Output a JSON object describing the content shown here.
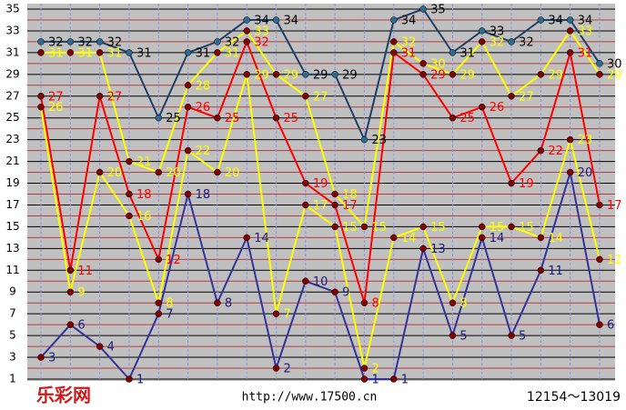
{
  "chart_data": {
    "type": "line",
    "logo": "乐彩网",
    "url": "http://www.17500.cn",
    "range_label": "12154～13019",
    "x": [
      1,
      2,
      3,
      4,
      5,
      6,
      7,
      8,
      9,
      10,
      11,
      12,
      13,
      14,
      15,
      16,
      17,
      18,
      19,
      20
    ],
    "ylim": [
      1,
      35
    ],
    "yticks": [
      1,
      3,
      5,
      7,
      9,
      11,
      13,
      15,
      17,
      19,
      21,
      23,
      25,
      27,
      29,
      31,
      33,
      35
    ],
    "grid": true,
    "series": [
      {
        "color": "#1f3f66",
        "marker_color": "#2e6a8e",
        "label_color": "#000000",
        "values": [
          32,
          32,
          32,
          31,
          25,
          31,
          32,
          34,
          34,
          29,
          29,
          23,
          34,
          35,
          31,
          33,
          32,
          34,
          34,
          30
        ]
      },
      {
        "color": "#ffff00",
        "marker_color": "#800000",
        "label_color": "#ffff00",
        "values": [
          31,
          31,
          31,
          21,
          20,
          28,
          31,
          33,
          29,
          27,
          18,
          15,
          32,
          30,
          29,
          32,
          27,
          29,
          33,
          29
        ]
      },
      {
        "color": "#ff0000",
        "marker_color": "#800000",
        "label_color": "#ff0000",
        "values": [
          27,
          11,
          27,
          18,
          12,
          26,
          25,
          32,
          25,
          19,
          17,
          8,
          31,
          29,
          25,
          26,
          19,
          22,
          31,
          17
        ]
      },
      {
        "color": "#ffff00",
        "marker_color": "#800000",
        "label_color": "#ffff00",
        "values": [
          26,
          9,
          20,
          16,
          8,
          22,
          20,
          29,
          7,
          17,
          15,
          2,
          14,
          15,
          8,
          15,
          15,
          14,
          23,
          12
        ]
      },
      {
        "color": "#333399",
        "marker_color": "#800000",
        "label_color": "#1a1a80",
        "values": [
          3,
          6,
          4,
          1,
          7,
          18,
          8,
          14,
          2,
          10,
          9,
          1,
          1,
          13,
          5,
          14,
          5,
          11,
          20,
          6
        ]
      }
    ]
  }
}
